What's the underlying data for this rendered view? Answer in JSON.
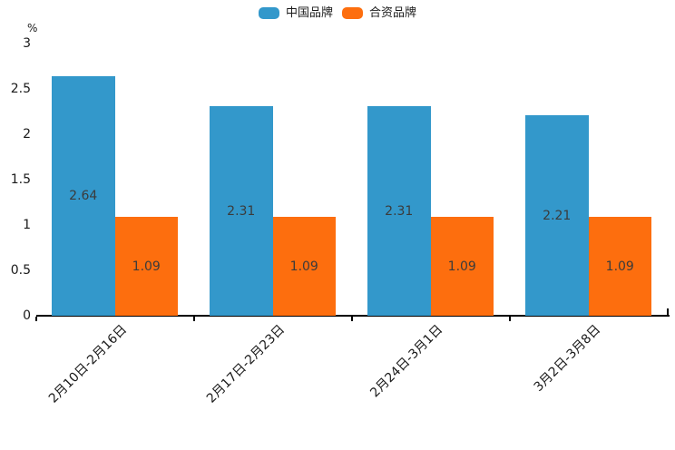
{
  "chart_data": {
    "type": "bar",
    "title": "",
    "xlabel": "",
    "ylabel": "%",
    "categories": [
      "2月10日-2月16日",
      "2月17日-2月23日",
      "2月24日-3月1日",
      "3月2日-3月8日"
    ],
    "series": [
      {
        "name": "中国品牌",
        "color": "#3398cb",
        "values": [
          2.64,
          2.31,
          2.31,
          2.21
        ]
      },
      {
        "name": "合资品牌",
        "color": "#fd6e0e",
        "values": [
          1.09,
          1.09,
          1.09,
          1.09
        ]
      }
    ],
    "ylim": [
      0,
      3
    ],
    "yticks": [
      0,
      0.5,
      1,
      1.5,
      2,
      2.5,
      3
    ],
    "grid": false,
    "legend_position": "top-center",
    "value_label_position": "inside-center",
    "value_label_decimals": 2,
    "xtick_rotation_deg": 45
  },
  "colors": {
    "axis_line": "#000000",
    "tick_label": "#1a1a1a",
    "value_label": "#3b3b3b",
    "background": "#ffffff"
  }
}
